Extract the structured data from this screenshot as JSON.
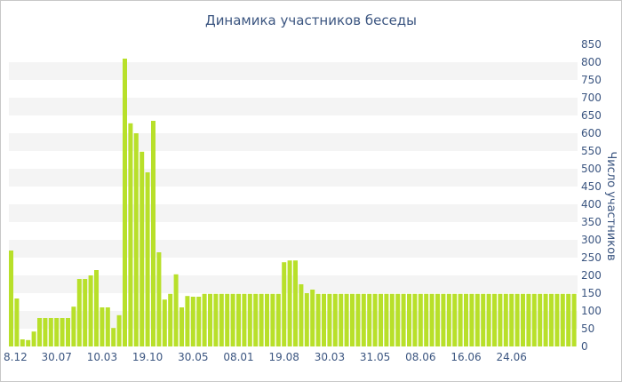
{
  "chart_data": {
    "type": "bar",
    "title": "Динамика участников беседы",
    "xlabel": "",
    "ylabel": "Число участников",
    "ylim": [
      0,
      850
    ],
    "y_ticks": [
      0,
      50,
      100,
      150,
      200,
      250,
      300,
      350,
      400,
      450,
      500,
      550,
      600,
      650,
      700,
      750,
      800,
      850
    ],
    "x_tick_labels": [
      {
        "index": 0,
        "label": "8.12"
      },
      {
        "index": 8,
        "label": "30.07"
      },
      {
        "index": 16,
        "label": "10.03"
      },
      {
        "index": 24,
        "label": "19.10"
      },
      {
        "index": 32,
        "label": "30.05"
      },
      {
        "index": 40,
        "label": "08.01"
      },
      {
        "index": 48,
        "label": "19.08"
      },
      {
        "index": 56,
        "label": "30.03"
      },
      {
        "index": 64,
        "label": "31.05"
      },
      {
        "index": 72,
        "label": "08.06"
      },
      {
        "index": 80,
        "label": "16.06"
      },
      {
        "index": 88,
        "label": "24.06"
      }
    ],
    "values": [
      270,
      135,
      20,
      18,
      42,
      80,
      80,
      80,
      80,
      80,
      80,
      112,
      190,
      190,
      200,
      215,
      110,
      110,
      52,
      88,
      810,
      628,
      600,
      548,
      490,
      635,
      265,
      132,
      148,
      203,
      110,
      142,
      140,
      140,
      148,
      148,
      148,
      148,
      148,
      148,
      148,
      148,
      148,
      148,
      148,
      148,
      148,
      148,
      237,
      242,
      242,
      175,
      150,
      160,
      148,
      148,
      148,
      148,
      148,
      148,
      148,
      148,
      148,
      148,
      148,
      148,
      148,
      148,
      148,
      148,
      148,
      148,
      148,
      148,
      148,
      148,
      148,
      148,
      148,
      148,
      148,
      148,
      148,
      148,
      148,
      148,
      148,
      148,
      148,
      148,
      148,
      148,
      148,
      148,
      148,
      148,
      148,
      148,
      148,
      148
    ],
    "colors": {
      "bar": "#b8e02a",
      "band": "#f4f4f4",
      "text": "#3b5580",
      "grid": "#ffffff"
    },
    "grid": "horizontal-bands",
    "legend": "none"
  }
}
